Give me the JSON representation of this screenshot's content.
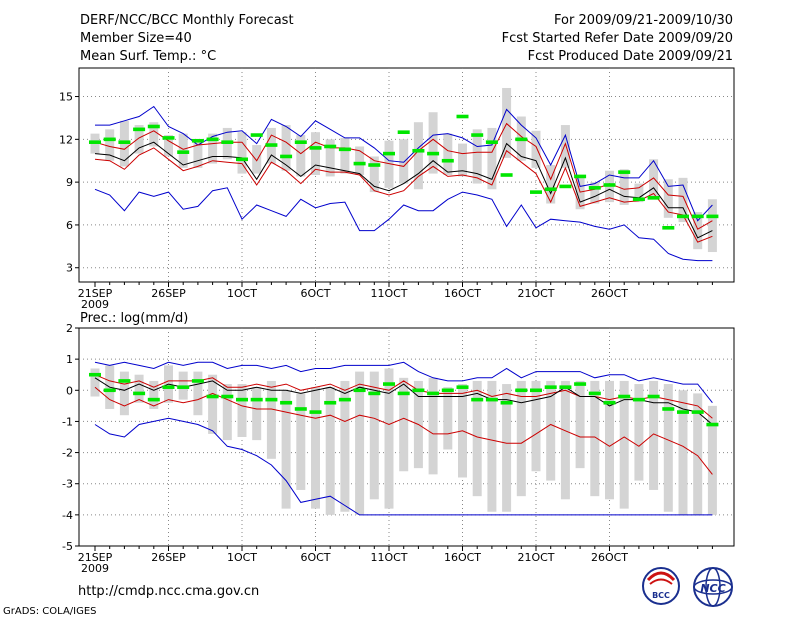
{
  "header": {
    "title": "DERF/NCC/BCC Monthly Forecast",
    "member_size": "Member Size=40",
    "variable": "Mean Surf. Temp.: °C",
    "period": "For 2009/09/21-2009/10/30",
    "refer_date": "Fcst Started Refer Date 2009/09/20",
    "produced_date": "Fcst Produced Date 2009/09/21"
  },
  "footer": {
    "url": "http://cmdp.ncc.cma.gov.cn",
    "grads": "GrADS: COLA/IGES",
    "logo_bcc_text": "BCC",
    "logo_ncc_text": "NCC"
  },
  "colors": {
    "max_line": "#0000cc",
    "min_line": "#cc0000",
    "mean_line": "#000000",
    "box": "#d4d4d4",
    "marker": "#00e600"
  },
  "chart_data": [
    {
      "type": "line",
      "title": "Mean Surf. Temp.: °C",
      "ylim": [
        2,
        17
      ],
      "yticks": [
        "3",
        "6",
        "9",
        "12",
        "15"
      ],
      "xlabels": [
        "21SEP",
        "26SEP",
        "1OCT",
        "6OCT",
        "11OCT",
        "16OCT",
        "21OCT",
        "26OCT"
      ],
      "xlabel_year": "2009",
      "series": [
        {
          "name": "max",
          "values": [
            13,
            13,
            13.3,
            13.6,
            14.3,
            12.9,
            12.4,
            11.6,
            12.2,
            12.5,
            12.6,
            11.7,
            13.4,
            12.9,
            12.2,
            13.3,
            12.7,
            12.1,
            12.1,
            11.4,
            10.5,
            10.4,
            11.4,
            12.3,
            12.4,
            12.1,
            11.5,
            11.6,
            14.1,
            13.0,
            12.1,
            10.2,
            12.3,
            8.7,
            8.9,
            9.5,
            9.3,
            9.3,
            10.5,
            8.7,
            8.8,
            6.3,
            7.4
          ]
        },
        {
          "name": "p75",
          "values": [
            11.8,
            11.5,
            11.3,
            12.1,
            12.6,
            11.9,
            11.3,
            11.6,
            11.7,
            11.8,
            11.8,
            10.5,
            12.3,
            11.8,
            11.0,
            11.8,
            11.4,
            11.4,
            11.2,
            10.5,
            10.3,
            10.1,
            11.2,
            12.0,
            11.2,
            11.0,
            11.1,
            11.1,
            13.1,
            12.2,
            11.5,
            9.2,
            11.7,
            8.3,
            8.5,
            8.9,
            8.5,
            8.6,
            9.3,
            8.1,
            8.0,
            5.7,
            6.3
          ]
        },
        {
          "name": "mean",
          "values": [
            11.0,
            10.9,
            10.5,
            11.4,
            11.8,
            11.0,
            10.2,
            10.5,
            10.8,
            10.8,
            10.7,
            9.2,
            10.9,
            10.2,
            9.4,
            10.2,
            10.0,
            9.8,
            9.6,
            8.7,
            8.4,
            8.9,
            9.6,
            10.5,
            9.7,
            9.8,
            9.6,
            9.2,
            11.7,
            10.8,
            10.5,
            8.2,
            10.7,
            7.6,
            8.0,
            8.5,
            8.0,
            7.9,
            8.6,
            7.2,
            7.2,
            5.1,
            5.6
          ]
        },
        {
          "name": "p25",
          "values": [
            10.6,
            10.5,
            9.9,
            10.9,
            11.4,
            10.6,
            9.8,
            10.1,
            10.5,
            10.4,
            10.3,
            8.8,
            10.4,
            9.8,
            8.9,
            9.9,
            9.7,
            9.7,
            9.5,
            8.4,
            8.1,
            8.4,
            9.4,
            10.1,
            9.4,
            9.5,
            9.3,
            8.8,
            11.2,
            10.4,
            9.6,
            7.6,
            10.0,
            7.3,
            7.6,
            7.9,
            7.6,
            7.7,
            8.2,
            6.9,
            6.7,
            4.8,
            5.2
          ]
        },
        {
          "name": "min",
          "values": [
            8.5,
            8.1,
            7.0,
            8.3,
            8.0,
            8.3,
            7.1,
            7.3,
            8.4,
            8.6,
            6.4,
            7.4,
            7.0,
            6.6,
            7.8,
            7.2,
            7.5,
            7.6,
            5.6,
            5.6,
            6.4,
            7.4,
            7.0,
            7.0,
            7.8,
            8.3,
            8.1,
            7.8,
            5.9,
            7.4,
            5.8,
            6.4,
            6.3,
            6.2,
            5.9,
            5.7,
            6.0,
            5.1,
            5.0,
            4.0,
            3.6,
            3.5,
            3.5
          ]
        },
        {
          "name": "box_top",
          "values": [
            12.4,
            12.7,
            13.3,
            13.0,
            13.2,
            12.3,
            12.4,
            12.0,
            12.4,
            12.8,
            12.5,
            11.6,
            12.8,
            13.0,
            12.3,
            12.5,
            12.0,
            12.1,
            11.5,
            10.8,
            11.9,
            12.0,
            13.2,
            13.9,
            12.4,
            11.7,
            12.7,
            12.8,
            15.6,
            13.6,
            12.6,
            10.2,
            13.0,
            9.3,
            9.0,
            9.8,
            9.9,
            8.9,
            10.6,
            9.2,
            9.3,
            6.9,
            7.8
          ]
        },
        {
          "name": "box_bottom",
          "values": [
            11.0,
            10.5,
            10.1,
            11.0,
            11.5,
            10.8,
            10.0,
            10.0,
            10.3,
            10.6,
            9.6,
            9.6,
            10.3,
            9.8,
            9.4,
            9.5,
            9.4,
            9.6,
            9.5,
            8.3,
            8.6,
            8.9,
            8.5,
            9.6,
            9.5,
            9.4,
            8.9,
            8.5,
            10.7,
            10.5,
            10.0,
            7.5,
            10.0,
            7.1,
            7.5,
            7.6,
            7.4,
            7.6,
            7.9,
            6.5,
            6.2,
            4.3,
            4.1
          ]
        },
        {
          "name": "marker",
          "values": [
            11.8,
            12.0,
            11.8,
            12.7,
            12.9,
            12.1,
            11.1,
            11.9,
            12.0,
            11.8,
            10.6,
            12.3,
            11.6,
            10.8,
            11.8,
            11.4,
            11.5,
            11.3,
            10.3,
            10.2,
            11.0,
            12.5,
            11.2,
            11.0,
            10.5,
            13.6,
            12.3,
            11.8,
            9.5,
            12.0,
            8.3,
            8.5,
            8.7,
            9.4,
            8.6,
            8.8,
            9.7,
            7.8,
            7.9,
            5.8,
            6.6,
            6.6,
            6.6
          ]
        }
      ]
    },
    {
      "type": "line",
      "title": "Prec.: log(mm/d)",
      "ylim": [
        -5,
        2
      ],
      "yticks": [
        "-5",
        "-4",
        "-3",
        "-2",
        "-1",
        "0",
        "1",
        "2"
      ],
      "xlabels": [
        "21SEP",
        "26SEP",
        "1OCT",
        "6OCT",
        "11OCT",
        "16OCT",
        "21OCT",
        "26OCT"
      ],
      "xlabel_year": "2009",
      "series": [
        {
          "name": "max",
          "values": [
            0.9,
            0.8,
            0.9,
            0.8,
            0.7,
            0.9,
            0.8,
            0.9,
            0.9,
            0.7,
            0.8,
            0.8,
            0.7,
            0.8,
            0.6,
            0.7,
            0.7,
            0.8,
            0.8,
            0.8,
            0.8,
            0.9,
            0.6,
            0.4,
            0.3,
            0.3,
            0.4,
            0.4,
            0.7,
            0.4,
            0.6,
            0.6,
            0.6,
            0.6,
            0.4,
            0.5,
            0.5,
            0.3,
            0.4,
            0.3,
            0.2,
            0.2,
            -0.4
          ]
        },
        {
          "name": "p75",
          "values": [
            0.5,
            0.3,
            0.2,
            0.3,
            0.1,
            0.3,
            0.3,
            0.3,
            0.4,
            0.1,
            0.1,
            0.2,
            0.1,
            0.2,
            0.0,
            0.1,
            0.2,
            0.0,
            0.2,
            0.1,
            0.0,
            0.3,
            0.0,
            -0.1,
            -0.1,
            -0.1,
            0.0,
            -0.2,
            -0.1,
            -0.2,
            -0.2,
            -0.1,
            0.0,
            -0.2,
            -0.2,
            -0.3,
            -0.2,
            -0.3,
            -0.2,
            -0.3,
            -0.4,
            -0.5,
            -0.9
          ]
        },
        {
          "name": "mean",
          "values": [
            0.4,
            0.1,
            0.0,
            0.2,
            0.0,
            0.2,
            0.1,
            0.2,
            0.3,
            0.0,
            0.0,
            0.1,
            0.0,
            0.0,
            -0.1,
            0.0,
            0.1,
            -0.1,
            0.1,
            0.0,
            -0.1,
            0.2,
            -0.2,
            -0.2,
            -0.2,
            -0.2,
            -0.1,
            -0.3,
            -0.3,
            -0.4,
            -0.3,
            -0.2,
            0.1,
            -0.2,
            -0.2,
            -0.5,
            -0.3,
            -0.3,
            -0.4,
            -0.4,
            -0.6,
            -0.7,
            -1.1
          ]
        },
        {
          "name": "min_red",
          "values": [
            0.1,
            -0.3,
            -0.5,
            -0.3,
            -0.5,
            -0.3,
            -0.4,
            -0.3,
            -0.1,
            -0.3,
            -0.5,
            -0.6,
            -0.6,
            -0.7,
            -0.8,
            -0.9,
            -0.8,
            -1.0,
            -0.8,
            -0.9,
            -1.1,
            -0.9,
            -1.1,
            -1.4,
            -1.4,
            -1.3,
            -1.5,
            -1.6,
            -1.7,
            -1.7,
            -1.4,
            -1.1,
            -1.3,
            -1.5,
            -1.5,
            -1.8,
            -1.5,
            -1.8,
            -1.4,
            -1.6,
            -1.8,
            -2.1,
            -2.7
          ]
        },
        {
          "name": "min",
          "values": [
            -1.1,
            -1.4,
            -1.5,
            -1.1,
            -1.0,
            -0.9,
            -1.0,
            -1.1,
            -1.3,
            -1.8,
            -1.9,
            -2.1,
            -2.4,
            -2.9,
            -3.6,
            -3.5,
            -3.4,
            -3.7,
            -4,
            -4,
            -4,
            -4,
            -4,
            -4,
            -4,
            -4,
            -4,
            -4,
            -4,
            -4,
            -4,
            -4,
            -4,
            -4,
            -4,
            -4,
            -4,
            -4,
            -4,
            -4,
            -4,
            -4,
            -4
          ]
        },
        {
          "name": "box_top",
          "values": [
            0.7,
            0.8,
            0.6,
            0.5,
            0.3,
            0.8,
            0.6,
            0.6,
            0.5,
            0.2,
            0.2,
            0.1,
            0.3,
            0.0,
            -0.1,
            0.1,
            0.1,
            0.3,
            0.6,
            0.6,
            0.7,
            0.4,
            0.3,
            0.4,
            0.1,
            0.2,
            0.3,
            0.3,
            0.2,
            0.3,
            0.3,
            0.3,
            0.3,
            0.3,
            0.3,
            0.3,
            0.3,
            0.2,
            0.3,
            0.2,
            0.0,
            -0.1,
            -0.5
          ]
        },
        {
          "name": "box_bottom",
          "values": [
            -0.2,
            -0.6,
            -0.8,
            -0.4,
            -0.6,
            -0.4,
            -0.3,
            -0.8,
            -1.4,
            -1.6,
            -1.5,
            -1.6,
            -2.2,
            -3.8,
            -3.2,
            -3.8,
            -4.0,
            -3.9,
            -4.0,
            -3.5,
            -3.8,
            -2.6,
            -2.5,
            -2.7,
            -1.9,
            -2.8,
            -3.4,
            -3.9,
            -3.9,
            -3.4,
            -2.6,
            -2.9,
            -3.5,
            -2.5,
            -3.4,
            -3.5,
            -3.8,
            -2.9,
            -3.2,
            -3.9,
            -4.0,
            -4.0,
            -4.0
          ]
        },
        {
          "name": "marker",
          "values": [
            0.5,
            0.0,
            0.3,
            -0.1,
            -0.3,
            0.1,
            0.1,
            0.3,
            -0.2,
            -0.2,
            -0.3,
            -0.3,
            -0.3,
            -0.4,
            -0.6,
            -0.7,
            -0.4,
            -0.3,
            0.0,
            -0.1,
            0.2,
            -0.1,
            0.0,
            -0.1,
            0.0,
            0.1,
            -0.3,
            -0.3,
            -0.4,
            0.0,
            0.0,
            0.1,
            0.1,
            0.2,
            -0.1,
            -0.4,
            -0.2,
            -0.3,
            -0.2,
            -0.6,
            -0.7,
            -0.7,
            -1.1
          ]
        }
      ]
    }
  ]
}
